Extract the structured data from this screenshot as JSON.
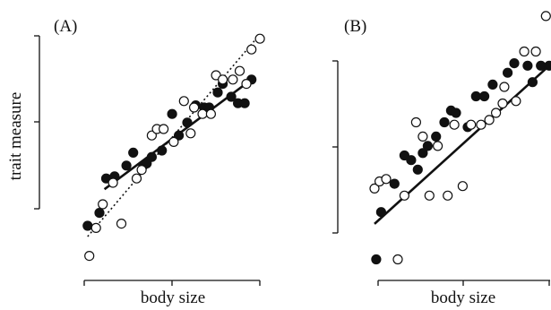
{
  "colors": {
    "ink": "#111111",
    "open_fill": "#ffffff",
    "paper": "#ffffff"
  },
  "chart_data": [
    {
      "type": "scatter",
      "panel_label": "(A)",
      "xlabel": "body size",
      "ylabel": "trait measure",
      "xlim": [
        0,
        10.5
      ],
      "ylim": [
        0,
        11
      ],
      "grid": false,
      "series": [
        {
          "marker": "filled",
          "points": [
            [
              0.2,
              2.0
            ],
            [
              0.9,
              2.6
            ],
            [
              1.3,
              4.2
            ],
            [
              1.8,
              4.3
            ],
            [
              2.5,
              4.8
            ],
            [
              2.9,
              5.4
            ],
            [
              3.5,
              4.8
            ],
            [
              3.7,
              4.9
            ],
            [
              4.0,
              5.2
            ],
            [
              4.6,
              5.5
            ],
            [
              5.2,
              7.2
            ],
            [
              5.6,
              6.2
            ],
            [
              6.1,
              6.8
            ],
            [
              6.6,
              7.6
            ],
            [
              7.1,
              7.5
            ],
            [
              7.4,
              7.5
            ],
            [
              7.9,
              8.2
            ],
            [
              8.2,
              8.6
            ],
            [
              8.7,
              8.0
            ],
            [
              9.1,
              7.7
            ],
            [
              9.5,
              7.7
            ],
            [
              9.9,
              8.8
            ]
          ]
        },
        {
          "marker": "open",
          "points": [
            [
              0.3,
              0.6
            ],
            [
              0.7,
              1.9
            ],
            [
              1.1,
              3.0
            ],
            [
              1.7,
              4.0
            ],
            [
              2.2,
              2.1
            ],
            [
              3.1,
              4.2
            ],
            [
              3.4,
              4.6
            ],
            [
              4.0,
              6.2
            ],
            [
              4.3,
              6.5
            ],
            [
              4.7,
              6.5
            ],
            [
              5.3,
              5.9
            ],
            [
              5.9,
              7.8
            ],
            [
              6.3,
              6.3
            ],
            [
              6.5,
              7.5
            ],
            [
              7.0,
              7.2
            ],
            [
              7.5,
              7.2
            ],
            [
              7.8,
              9.0
            ],
            [
              8.2,
              8.8
            ],
            [
              8.8,
              8.8
            ],
            [
              9.2,
              9.2
            ],
            [
              9.6,
              8.6
            ],
            [
              9.9,
              10.2
            ],
            [
              10.4,
              10.7
            ]
          ]
        }
      ],
      "fits": [
        {
          "style": "solid",
          "from": [
            1.2,
            3.7
          ],
          "to": [
            9.9,
            8.8
          ]
        },
        {
          "style": "dotted",
          "from": [
            0.2,
            1.5
          ],
          "to": [
            10.4,
            10.9
          ]
        }
      ]
    },
    {
      "type": "scatter",
      "panel_label": "(B)",
      "xlabel": "body size",
      "ylabel": "",
      "xlim": [
        0,
        10.5
      ],
      "ylim": [
        0,
        11
      ],
      "grid": false,
      "series": [
        {
          "marker": "filled",
          "points": [
            [
              0.1,
              0.4
            ],
            [
              0.4,
              2.4
            ],
            [
              1.2,
              3.6
            ],
            [
              1.8,
              4.8
            ],
            [
              2.2,
              4.6
            ],
            [
              2.6,
              4.2
            ],
            [
              2.9,
              4.9
            ],
            [
              3.2,
              5.2
            ],
            [
              3.7,
              5.6
            ],
            [
              4.2,
              6.2
            ],
            [
              4.6,
              6.7
            ],
            [
              4.9,
              6.6
            ],
            [
              5.6,
              6.0
            ],
            [
              6.1,
              7.3
            ],
            [
              6.6,
              7.3
            ],
            [
              7.1,
              7.8
            ],
            [
              8.0,
              8.3
            ],
            [
              8.4,
              8.7
            ],
            [
              9.2,
              8.6
            ],
            [
              9.5,
              7.9
            ],
            [
              10.0,
              8.6
            ],
            [
              10.5,
              8.6
            ]
          ]
        },
        {
          "marker": "open",
          "points": [
            [
              0.0,
              3.4
            ],
            [
              0.3,
              3.7
            ],
            [
              0.7,
              3.8
            ],
            [
              1.4,
              0.4
            ],
            [
              1.8,
              3.1
            ],
            [
              2.5,
              6.2
            ],
            [
              2.9,
              5.6
            ],
            [
              3.3,
              3.1
            ],
            [
              3.8,
              5.2
            ],
            [
              4.4,
              3.1
            ],
            [
              4.8,
              6.1
            ],
            [
              5.3,
              3.5
            ],
            [
              5.8,
              6.1
            ],
            [
              6.4,
              6.1
            ],
            [
              6.9,
              6.3
            ],
            [
              7.3,
              6.6
            ],
            [
              7.7,
              7.0
            ],
            [
              7.8,
              7.7
            ],
            [
              8.5,
              7.1
            ],
            [
              9.0,
              9.2
            ],
            [
              9.7,
              9.2
            ],
            [
              10.3,
              10.7
            ]
          ]
        }
      ],
      "fits": [
        {
          "style": "solid",
          "from": [
            0.0,
            1.9
          ],
          "to": [
            10.5,
            8.6
          ]
        }
      ]
    }
  ]
}
